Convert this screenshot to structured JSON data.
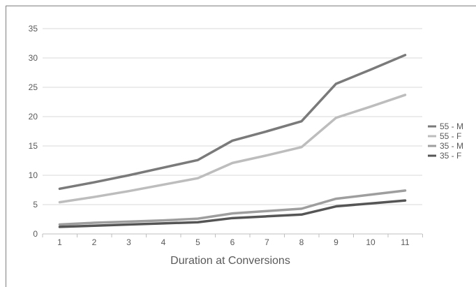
{
  "chart_data": {
    "type": "line",
    "title": "",
    "xlabel": "Duration at Conversions",
    "ylabel": "",
    "x": [
      1,
      2,
      3,
      4,
      5,
      6,
      7,
      8,
      9,
      10,
      11
    ],
    "ylim": [
      0,
      35
    ],
    "yticks": [
      0,
      5,
      10,
      15,
      20,
      25,
      30,
      35
    ],
    "grid": "horizontal",
    "legend_position": "right",
    "series": [
      {
        "name": "55 - M",
        "color": "#7a7a7a",
        "values": [
          7.7,
          8.8,
          10.0,
          11.3,
          12.6,
          15.9,
          17.5,
          19.2,
          25.6,
          28.0,
          30.5
        ]
      },
      {
        "name": "55 - F",
        "color": "#bdbdbd",
        "values": [
          5.4,
          6.3,
          7.3,
          8.4,
          9.5,
          12.1,
          13.4,
          14.8,
          19.8,
          21.7,
          23.7
        ]
      },
      {
        "name": "35 - M",
        "color": "#9e9e9e",
        "values": [
          1.6,
          1.9,
          2.1,
          2.3,
          2.6,
          3.5,
          3.9,
          4.3,
          6.0,
          6.7,
          7.4
        ]
      },
      {
        "name": "35 - F",
        "color": "#555555",
        "values": [
          1.2,
          1.4,
          1.6,
          1.8,
          2.0,
          2.7,
          3.0,
          3.3,
          4.7,
          5.2,
          5.7
        ]
      }
    ]
  }
}
